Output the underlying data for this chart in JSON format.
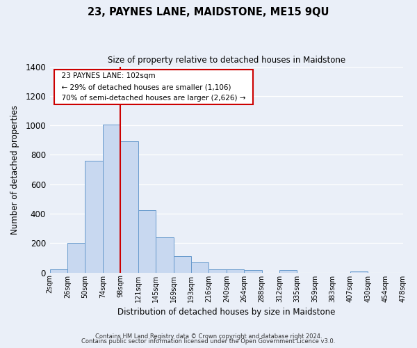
{
  "title": "23, PAYNES LANE, MAIDSTONE, ME15 9QU",
  "subtitle": "Size of property relative to detached houses in Maidstone",
  "xlabel": "Distribution of detached houses by size in Maidstone",
  "ylabel": "Number of detached properties",
  "footer_lines": [
    "Contains HM Land Registry data © Crown copyright and database right 2024.",
    "Contains public sector information licensed under the Open Government Licence v3.0."
  ],
  "bin_labels": [
    "2sqm",
    "26sqm",
    "50sqm",
    "74sqm",
    "98sqm",
    "121sqm",
    "145sqm",
    "169sqm",
    "193sqm",
    "216sqm",
    "240sqm",
    "264sqm",
    "288sqm",
    "312sqm",
    "335sqm",
    "359sqm",
    "383sqm",
    "407sqm",
    "430sqm",
    "454sqm",
    "478sqm"
  ],
  "bar_values": [
    20,
    200,
    760,
    1005,
    890,
    425,
    240,
    110,
    70,
    22,
    22,
    15,
    0,
    15,
    0,
    0,
    0,
    10,
    0,
    0
  ],
  "bar_color": "#c8d8f0",
  "bar_edge_color": "#6699cc",
  "vline_x": 4,
  "vline_color": "#cc0000",
  "ylim": [
    0,
    1400
  ],
  "yticks": [
    0,
    200,
    400,
    600,
    800,
    1000,
    1200,
    1400
  ],
  "annotation_title": "23 PAYNES LANE: 102sqm",
  "annotation_line1": "← 29% of detached houses are smaller (1,106)",
  "annotation_line2": "70% of semi-detached houses are larger (2,626) →",
  "bg_color": "#eaeff8",
  "grid_color": "#ffffff",
  "annotation_box_color": "#ffffff",
  "annotation_box_edge": "#cc0000"
}
